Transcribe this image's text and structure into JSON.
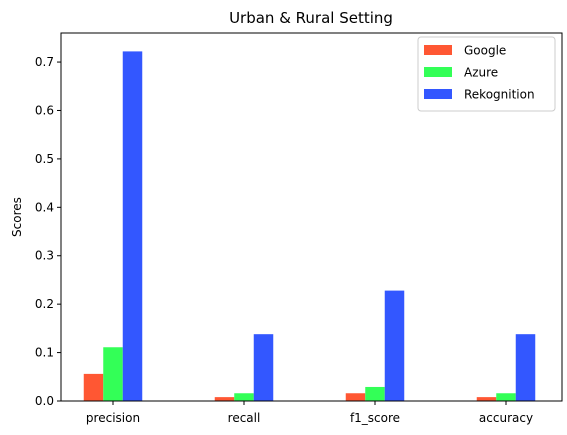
{
  "chart_data": {
    "type": "bar",
    "title": "Urban & Rural Setting",
    "xlabel": "",
    "ylabel": "Scores",
    "categories": [
      "precision",
      "recall",
      "f1_score",
      "accuracy"
    ],
    "series": [
      {
        "name": "Google",
        "color": "#FF5733",
        "values": [
          0.056,
          0.008,
          0.016,
          0.008
        ]
      },
      {
        "name": "Azure",
        "color": "#33FF57",
        "values": [
          0.111,
          0.016,
          0.029,
          0.016
        ]
      },
      {
        "name": "Rekognition",
        "color": "#3357FF",
        "values": [
          0.722,
          0.138,
          0.228,
          0.138
        ]
      }
    ],
    "ylim": [
      0,
      0.76
    ],
    "yticks": [
      0.0,
      0.1,
      0.2,
      0.3,
      0.4,
      0.5,
      0.6,
      0.7
    ],
    "ytick_labels": [
      "0.0",
      "0.1",
      "0.2",
      "0.3",
      "0.4",
      "0.5",
      "0.6",
      "0.7"
    ],
    "grid": false,
    "legend_position": "top-right"
  }
}
